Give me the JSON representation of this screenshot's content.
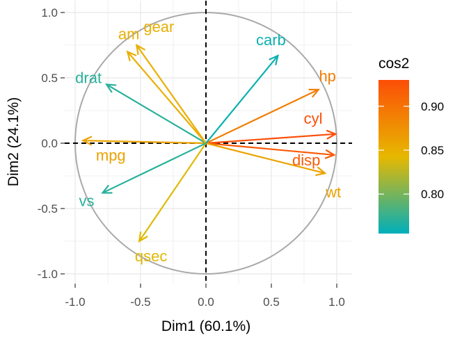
{
  "chart_data": {
    "type": "scatter",
    "title": "",
    "xlabel": "Dim1 (60.1%)",
    "ylabel": "Dim2 (24.1%)",
    "xlim": [
      -1.0,
      1.0
    ],
    "ylim": [
      -1.0,
      1.0
    ],
    "xticks": [
      "-1.0",
      "-0.5",
      "0.0",
      "0.5",
      "1.0"
    ],
    "yticks": [
      "-1.0",
      "-0.5",
      "0.0",
      "0.5",
      "1.0"
    ],
    "xtick_values": [
      -1.0,
      -0.5,
      0.0,
      0.5,
      1.0
    ],
    "ytick_values": [
      -1.0,
      -0.5,
      0.0,
      0.5,
      1.0
    ],
    "grid": true,
    "correlation_circle": true,
    "legend": {
      "title": "cos2",
      "position": "right",
      "ticks": [
        "0.90",
        "0.85",
        "0.80"
      ],
      "tick_values": [
        0.9,
        0.85,
        0.8
      ],
      "min": 0.755,
      "max": 0.93,
      "colors": [
        "#00AFBB",
        "#E7B800",
        "#FC4E07"
      ]
    },
    "variables": [
      {
        "name": "mpg",
        "x": -0.94,
        "y": 0.02,
        "cos2": 0.86
      },
      {
        "name": "cyl",
        "x": 0.99,
        "y": 0.07,
        "cos2": 0.93
      },
      {
        "name": "disp",
        "x": 0.98,
        "y": -0.09,
        "cos2": 0.92
      },
      {
        "name": "hp",
        "x": 0.86,
        "y": 0.41,
        "cos2": 0.89
      },
      {
        "name": "drat",
        "x": -0.76,
        "y": 0.45,
        "cos2": 0.77
      },
      {
        "name": "wt",
        "x": 0.91,
        "y": -0.23,
        "cos2": 0.86
      },
      {
        "name": "qsec",
        "x": -0.51,
        "y": -0.75,
        "cos2": 0.84
      },
      {
        "name": "vs",
        "x": -0.79,
        "y": -0.38,
        "cos2": 0.77
      },
      {
        "name": "am",
        "x": -0.6,
        "y": 0.7,
        "cos2": 0.85
      },
      {
        "name": "gear",
        "x": -0.53,
        "y": 0.75,
        "cos2": 0.85
      },
      {
        "name": "carb",
        "x": 0.55,
        "y": 0.67,
        "cos2": 0.76
      }
    ]
  }
}
